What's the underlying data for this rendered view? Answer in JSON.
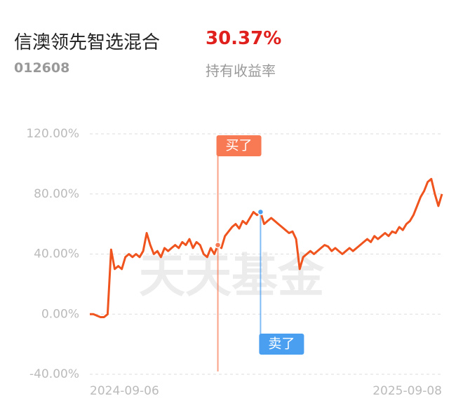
{
  "header": {
    "title": "信澳领先智选混合",
    "return_value": "30.37%",
    "code": "012608",
    "return_label": "持有收益率"
  },
  "chart_data": {
    "type": "line",
    "watermark": "天天基金",
    "categories": [
      "2024-09-06",
      null,
      null,
      null,
      null,
      null,
      null,
      null,
      null,
      null,
      null,
      null,
      null,
      null,
      null,
      null,
      null,
      null,
      null,
      null,
      null,
      null,
      null,
      null,
      null,
      null,
      null,
      null,
      null,
      null,
      null,
      null,
      null,
      null,
      null,
      null,
      null,
      null,
      null,
      null,
      null,
      null,
      null,
      null,
      null,
      null,
      null,
      null,
      null,
      null,
      null,
      null,
      null,
      null,
      null,
      null,
      null,
      null,
      null,
      null,
      null,
      null,
      null,
      null,
      null,
      null,
      null,
      null,
      null,
      null,
      null,
      null,
      null,
      null,
      null,
      null,
      null,
      null,
      null,
      null,
      null,
      null,
      null,
      null,
      null,
      null,
      null,
      null,
      null,
      null,
      null,
      null,
      null,
      null,
      null,
      null,
      null,
      null,
      null,
      "2025-09-08"
    ],
    "series": [
      {
        "color": "#f0541e",
        "values": [
          0,
          0,
          -1,
          -2,
          -2,
          0,
          43,
          30,
          32,
          30,
          38,
          40,
          38,
          40,
          38,
          42,
          54,
          46,
          40,
          42,
          38,
          44,
          42,
          44,
          46,
          44,
          48,
          46,
          50,
          44,
          48,
          46,
          40,
          38,
          44,
          40,
          46,
          44,
          52,
          55,
          58,
          60,
          57,
          62,
          60,
          64,
          68,
          66,
          68,
          60,
          62,
          64,
          62,
          60,
          58,
          56,
          54,
          55,
          50,
          30,
          38,
          40,
          42,
          40,
          42,
          44,
          46,
          45,
          42,
          44,
          42,
          40,
          42,
          44,
          42,
          44,
          46,
          48,
          50,
          48,
          52,
          50,
          52,
          54,
          52,
          55,
          54,
          58,
          56,
          60,
          62,
          66,
          72,
          78,
          82,
          88,
          90,
          80,
          72,
          80
        ]
      }
    ],
    "ylim": [
      -40,
      120
    ],
    "yticks": [
      {
        "value": -40,
        "label": "-40.00%"
      },
      {
        "value": 0,
        "label": "0.00%"
      },
      {
        "value": 40,
        "label": "40.00%"
      },
      {
        "value": 80,
        "label": "80.00%"
      },
      {
        "value": 120,
        "label": "120.00%"
      }
    ],
    "grid": true,
    "annotations": [
      {
        "text": "买了",
        "index": 36,
        "color": "#f87a55"
      },
      {
        "text": "卖了",
        "index": 48,
        "color": "#4a9ff0"
      }
    ]
  }
}
